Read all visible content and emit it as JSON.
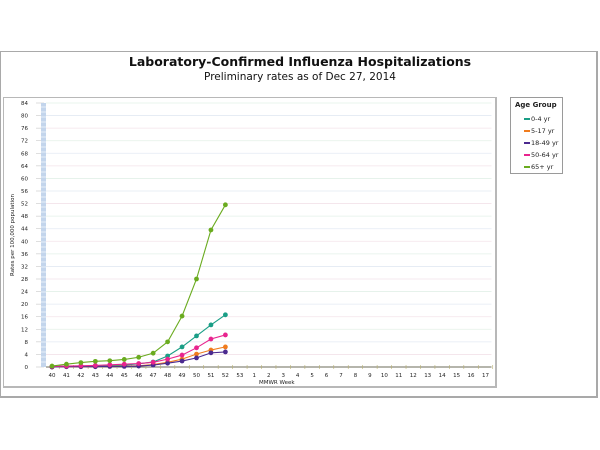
{
  "chart_data": {
    "type": "line",
    "title": "Laboratory-Confirmed Influenza Hospitalizations",
    "subtitle": "Preliminary rates as of Dec 27, 2014",
    "xlabel": "MMWR Week",
    "ylabel": "Rates per 100,000 population",
    "ylim": [
      0,
      84
    ],
    "y_ticks": [
      "0",
      "4",
      "8",
      "12",
      "16",
      "20",
      "24",
      "28",
      "32",
      "36",
      "40",
      "44",
      "48",
      "52",
      "56",
      "60",
      "64",
      "68",
      "72",
      "76",
      "80",
      "84"
    ],
    "x_ticks": [
      "40",
      "41",
      "42",
      "43",
      "44",
      "45",
      "46",
      "47",
      "48",
      "49",
      "50",
      "51",
      "52",
      "53",
      "1",
      "2",
      "3",
      "4",
      "5",
      "6",
      "7",
      "8",
      "9",
      "10",
      "11",
      "12",
      "13",
      "14",
      "15",
      "16",
      "17"
    ],
    "grid": true,
    "legend_position": "right",
    "legend_title": "Age Group",
    "x": [
      "40",
      "41",
      "42",
      "43",
      "44",
      "45",
      "46",
      "47",
      "48",
      "49",
      "50",
      "51",
      "52"
    ],
    "series": [
      {
        "name": "0-4 yr",
        "color": "#1a9e86",
        "values": [
          0.1,
          0.2,
          0.3,
          0.4,
          0.5,
          0.6,
          1.0,
          1.6,
          3.5,
          6.4,
          9.9,
          13.4,
          16.6
        ]
      },
      {
        "name": "5-17 yr",
        "color": "#f07c1e",
        "values": [
          0.0,
          0.1,
          0.1,
          0.1,
          0.2,
          0.3,
          0.4,
          0.8,
          1.5,
          2.5,
          4.1,
          5.4,
          6.4
        ]
      },
      {
        "name": "18-49 yr",
        "color": "#4b2a8f",
        "values": [
          0.0,
          0.1,
          0.1,
          0.1,
          0.2,
          0.2,
          0.3,
          0.6,
          1.2,
          1.9,
          2.9,
          4.5,
          4.8
        ]
      },
      {
        "name": "50-64 yr",
        "color": "#e8248e",
        "values": [
          0.2,
          0.3,
          0.4,
          0.5,
          0.7,
          0.9,
          1.1,
          1.5,
          2.5,
          3.8,
          6.1,
          8.9,
          10.2
        ]
      },
      {
        "name": "65+ yr",
        "color": "#6aab1f",
        "values": [
          0.3,
          0.9,
          1.4,
          1.8,
          2.0,
          2.4,
          3.1,
          4.4,
          8.0,
          16.2,
          28.0,
          43.6,
          51.6
        ]
      }
    ]
  },
  "header": {
    "title": "Laboratory-Confirmed Influenza Hospitalizations",
    "subtitle": "Preliminary rates as of Dec 27, 2014"
  },
  "axes": {
    "xlabel": "MMWR Week",
    "ylabel": "Rates per 100,000 population"
  },
  "legend": {
    "title": "Age Group",
    "items": [
      {
        "label": "0-4 yr",
        "color": "#1a9e86"
      },
      {
        "label": "5-17 yr",
        "color": "#f07c1e"
      },
      {
        "label": "18-49 yr",
        "color": "#4b2a8f"
      },
      {
        "label": "50-64 yr",
        "color": "#e8248e"
      },
      {
        "label": "65+ yr",
        "color": "#6aab1f"
      }
    ]
  }
}
